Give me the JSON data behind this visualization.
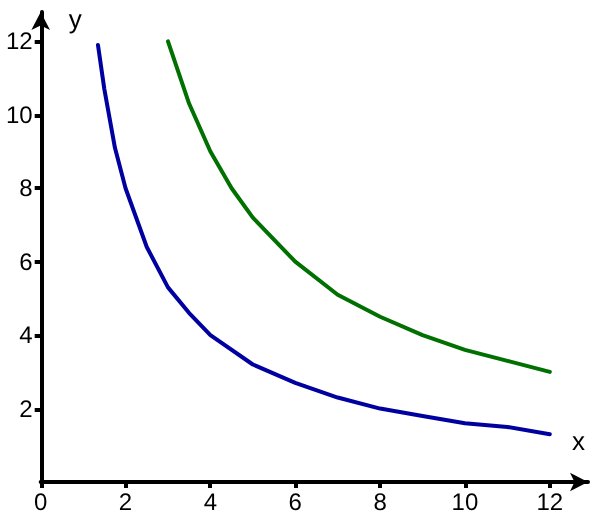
{
  "chart_data": {
    "type": "line",
    "xlabel": "x",
    "ylabel": "y",
    "xlim": [
      0,
      12.9
    ],
    "ylim": [
      0,
      12.8
    ],
    "xticks": [
      0,
      2,
      4,
      6,
      8,
      10,
      12
    ],
    "yticks": [
      2,
      4,
      6,
      8,
      10,
      12
    ],
    "grid": false,
    "marker": "none",
    "line_style": "solid",
    "series": [
      {
        "color": "#0000a0",
        "x": [
          1.35,
          1.5,
          1.75,
          2,
          2.5,
          3,
          3.5,
          4,
          5,
          6,
          7,
          8,
          9,
          10,
          11,
          12
        ],
        "values": [
          11.9,
          10.7,
          9.1,
          8,
          6.4,
          5.3,
          4.6,
          4,
          3.2,
          2.7,
          2.3,
          2,
          1.8,
          1.6,
          1.5,
          1.3
        ]
      },
      {
        "color": "#007000",
        "x": [
          3,
          3.5,
          4,
          4.5,
          5,
          6,
          7,
          8,
          9,
          10,
          11,
          12
        ],
        "values": [
          12,
          10.3,
          9,
          8,
          7.2,
          6,
          5.1,
          4.5,
          4,
          3.6,
          3.3,
          3
        ]
      }
    ]
  }
}
